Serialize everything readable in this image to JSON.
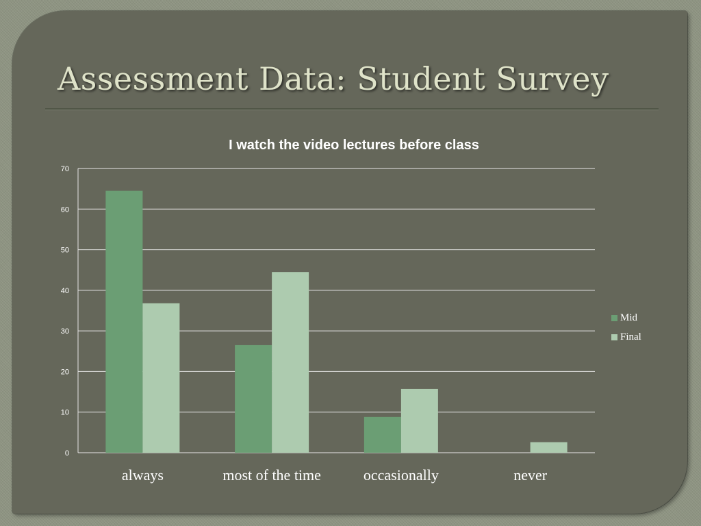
{
  "slide": {
    "title": "Assessment Data: Student Survey"
  },
  "chart_data": {
    "type": "bar",
    "title": "I watch the video lectures before class",
    "categories": [
      "always",
      "most of the time",
      "occasionally",
      "never"
    ],
    "series": [
      {
        "name": "Mid",
        "values": [
          64.5,
          26.5,
          8.8,
          0
        ],
        "color": "#6b9e74"
      },
      {
        "name": "Final",
        "values": [
          36.8,
          44.5,
          15.7,
          2.6
        ],
        "color": "#adcbaf"
      }
    ],
    "ylim": [
      0,
      70
    ],
    "yticks": [
      0,
      10,
      20,
      30,
      40,
      50,
      60,
      70
    ],
    "xlabel": "",
    "ylabel": "",
    "grid": true,
    "legend_position": "right"
  }
}
